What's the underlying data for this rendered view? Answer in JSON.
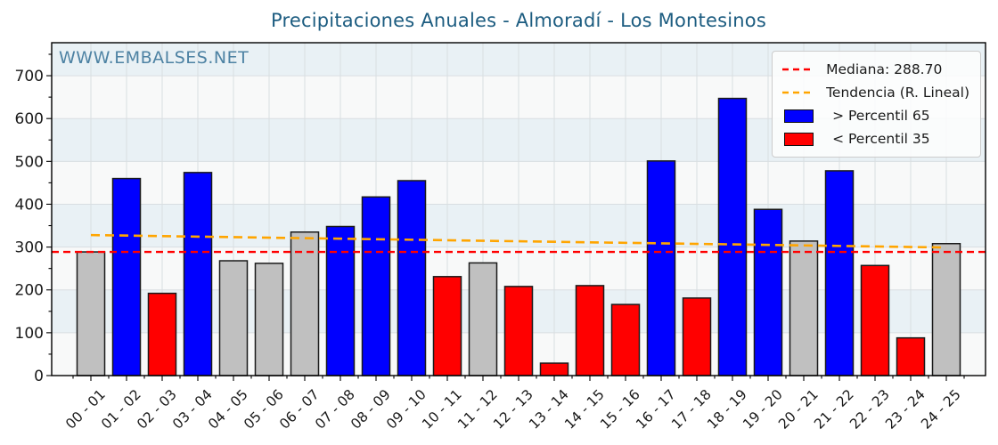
{
  "chart": {
    "title": "Precipitaciones Anuales - Almoradí - Los Montesinos",
    "title_color": "#1c5c80",
    "watermark": "WWW.EMBALSES.NET",
    "watermark_color": "#4d82a3"
  },
  "legend": {
    "items": [
      {
        "label": "Mediana: 288.70",
        "swatch": "dashed-line",
        "color": "#ff0000"
      },
      {
        "label": "Tendencia (R. Lineal)",
        "swatch": "dashed-line",
        "color": "#ffa500"
      },
      {
        "label": "> Percentil 65",
        "swatch": "patch",
        "color": "#0000ff"
      },
      {
        "label": "< Percentil 35",
        "swatch": "patch",
        "color": "#ff0000"
      }
    ]
  },
  "chart_data": {
    "type": "bar",
    "title": "Precipitaciones Anuales - Almoradí - Los Montesinos",
    "xlabel": "",
    "ylabel": "",
    "ylim": [
      0,
      777
    ],
    "yticks": [
      0,
      100,
      200,
      300,
      400,
      500,
      600,
      700
    ],
    "grid": true,
    "legend_position": "upper right",
    "categories": [
      "00 - 01",
      "01 - 02",
      "02 - 03",
      "03 - 04",
      "04 - 05",
      "05 - 06",
      "06 - 07",
      "07 - 08",
      "08 - 09",
      "09 - 10",
      "10 - 11",
      "11 - 12",
      "12 - 13",
      "13 - 14",
      "14 - 15",
      "15 - 16",
      "16 - 17",
      "17 - 18",
      "18 - 19",
      "19 - 20",
      "20 - 21",
      "21 - 22",
      "22 - 23",
      "23 - 24",
      "24 - 25"
    ],
    "values": [
      288.7,
      460,
      192,
      474,
      268,
      262,
      335,
      348,
      417,
      455,
      231,
      263,
      208,
      29,
      210,
      166,
      501,
      181,
      647,
      388,
      314,
      478,
      257,
      88,
      308
    ],
    "classes": [
      "mid",
      "above65",
      "below35",
      "above65",
      "mid",
      "mid",
      "mid",
      "above65",
      "above65",
      "above65",
      "below35",
      "mid",
      "below35",
      "below35",
      "below35",
      "below35",
      "above65",
      "below35",
      "above65",
      "above65",
      "mid",
      "above65",
      "below35",
      "below35",
      "mid"
    ],
    "median": 288.7,
    "trend": {
      "type": "linear",
      "start_value": 328,
      "end_value": 299
    },
    "colors": {
      "above65": "#0000ff",
      "below35": "#ff0000",
      "mid": "#c0c0c0",
      "bar_edge": "#1a1a1a",
      "median_line": "#ff0000",
      "trend_line": "#ffa500",
      "band_blue": "#e9f1f5",
      "band_white": "#f8f9f9",
      "grid": "#d9dee1",
      "frame": "#000000",
      "tick_label": "#1a1a1a"
    }
  }
}
